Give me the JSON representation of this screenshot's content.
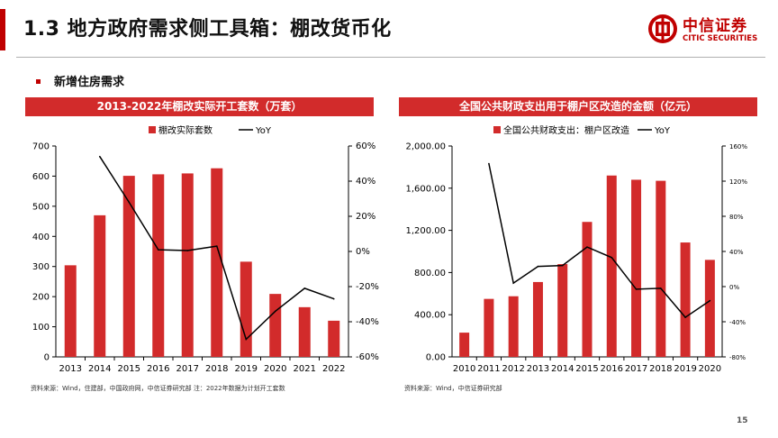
{
  "page": {
    "title": "1.3 地方政府需求侧工具箱：棚改货币化",
    "section": "新增住房需求",
    "page_number": "15"
  },
  "logo": {
    "name_cn": "中信证券",
    "name_en": "CITIC SECURITIES",
    "color": "#c00000"
  },
  "colors": {
    "accent": "#c00000",
    "bar": "#d22b2b",
    "line": "#000000",
    "header_bg": "#d22b2b"
  },
  "charts": [
    {
      "header": "2013-2022年棚改实际开工套数（万套）",
      "source": "资料来源：Wind，住建部，中国政府网，中信证券研究部 注：2022年数据为计划开工套数"
    },
    {
      "header": "全国公共财政支出用于棚户区改造的金额（亿元）",
      "source": "资料来源：Wind，中信证券研究部"
    }
  ],
  "chart_data": [
    {
      "type": "bar",
      "title": "2013-2022年棚改实际开工套数（万套）",
      "categories": [
        "2013",
        "2014",
        "2015",
        "2016",
        "2017",
        "2018",
        "2019",
        "2020",
        "2021",
        "2022"
      ],
      "series": [
        {
          "name": "棚改实际套数",
          "type": "bar",
          "axis": "left",
          "values": [
            304,
            470,
            601,
            606,
            609,
            626,
            316,
            209,
            165,
            120
          ]
        },
        {
          "name": "YoY",
          "type": "line",
          "axis": "right",
          "values": [
            null,
            54,
            28,
            1,
            0.5,
            3,
            -50,
            -34,
            -21,
            -27
          ]
        }
      ],
      "y_left": {
        "min": 0,
        "max": 700,
        "step": 100,
        "ticks": [
          "0",
          "100",
          "200",
          "300",
          "400",
          "500",
          "600",
          "700"
        ]
      },
      "y_right": {
        "min": -60,
        "max": 60,
        "step": 20,
        "ticks": [
          "-60%",
          "-40%",
          "-20%",
          "0%",
          "20%",
          "40%",
          "60%"
        ]
      },
      "legend": "top-center",
      "grid": false
    },
    {
      "type": "bar",
      "title": "全国公共财政支出用于棚户区改造的金额（亿元）",
      "categories": [
        "2010",
        "2011",
        "2012",
        "2013",
        "2014",
        "2015",
        "2016",
        "2017",
        "2018",
        "2019",
        "2020"
      ],
      "series": [
        {
          "name": "全国公共财政支出：棚户区改造",
          "type": "bar",
          "axis": "left",
          "values": [
            230,
            550,
            575,
            710,
            880,
            1280,
            1720,
            1680,
            1670,
            1085,
            920
          ]
        },
        {
          "name": "YoY",
          "type": "line",
          "axis": "right",
          "values": [
            null,
            140,
            4,
            23,
            24,
            45,
            33,
            -3,
            -2,
            -35,
            -16
          ]
        }
      ],
      "y_left": {
        "min": 0,
        "max": 2000,
        "step": 400,
        "ticks": [
          "0.00",
          "400.00",
          "800.00",
          "1,200.00",
          "1,600.00",
          "2,000.00"
        ]
      },
      "y_right": {
        "min": -80,
        "max": 160,
        "step": 40,
        "ticks": [
          "-80%",
          "-40%",
          "0%",
          "40%",
          "80%",
          "120%",
          "160%"
        ]
      },
      "legend": "top-center",
      "grid": false
    }
  ]
}
